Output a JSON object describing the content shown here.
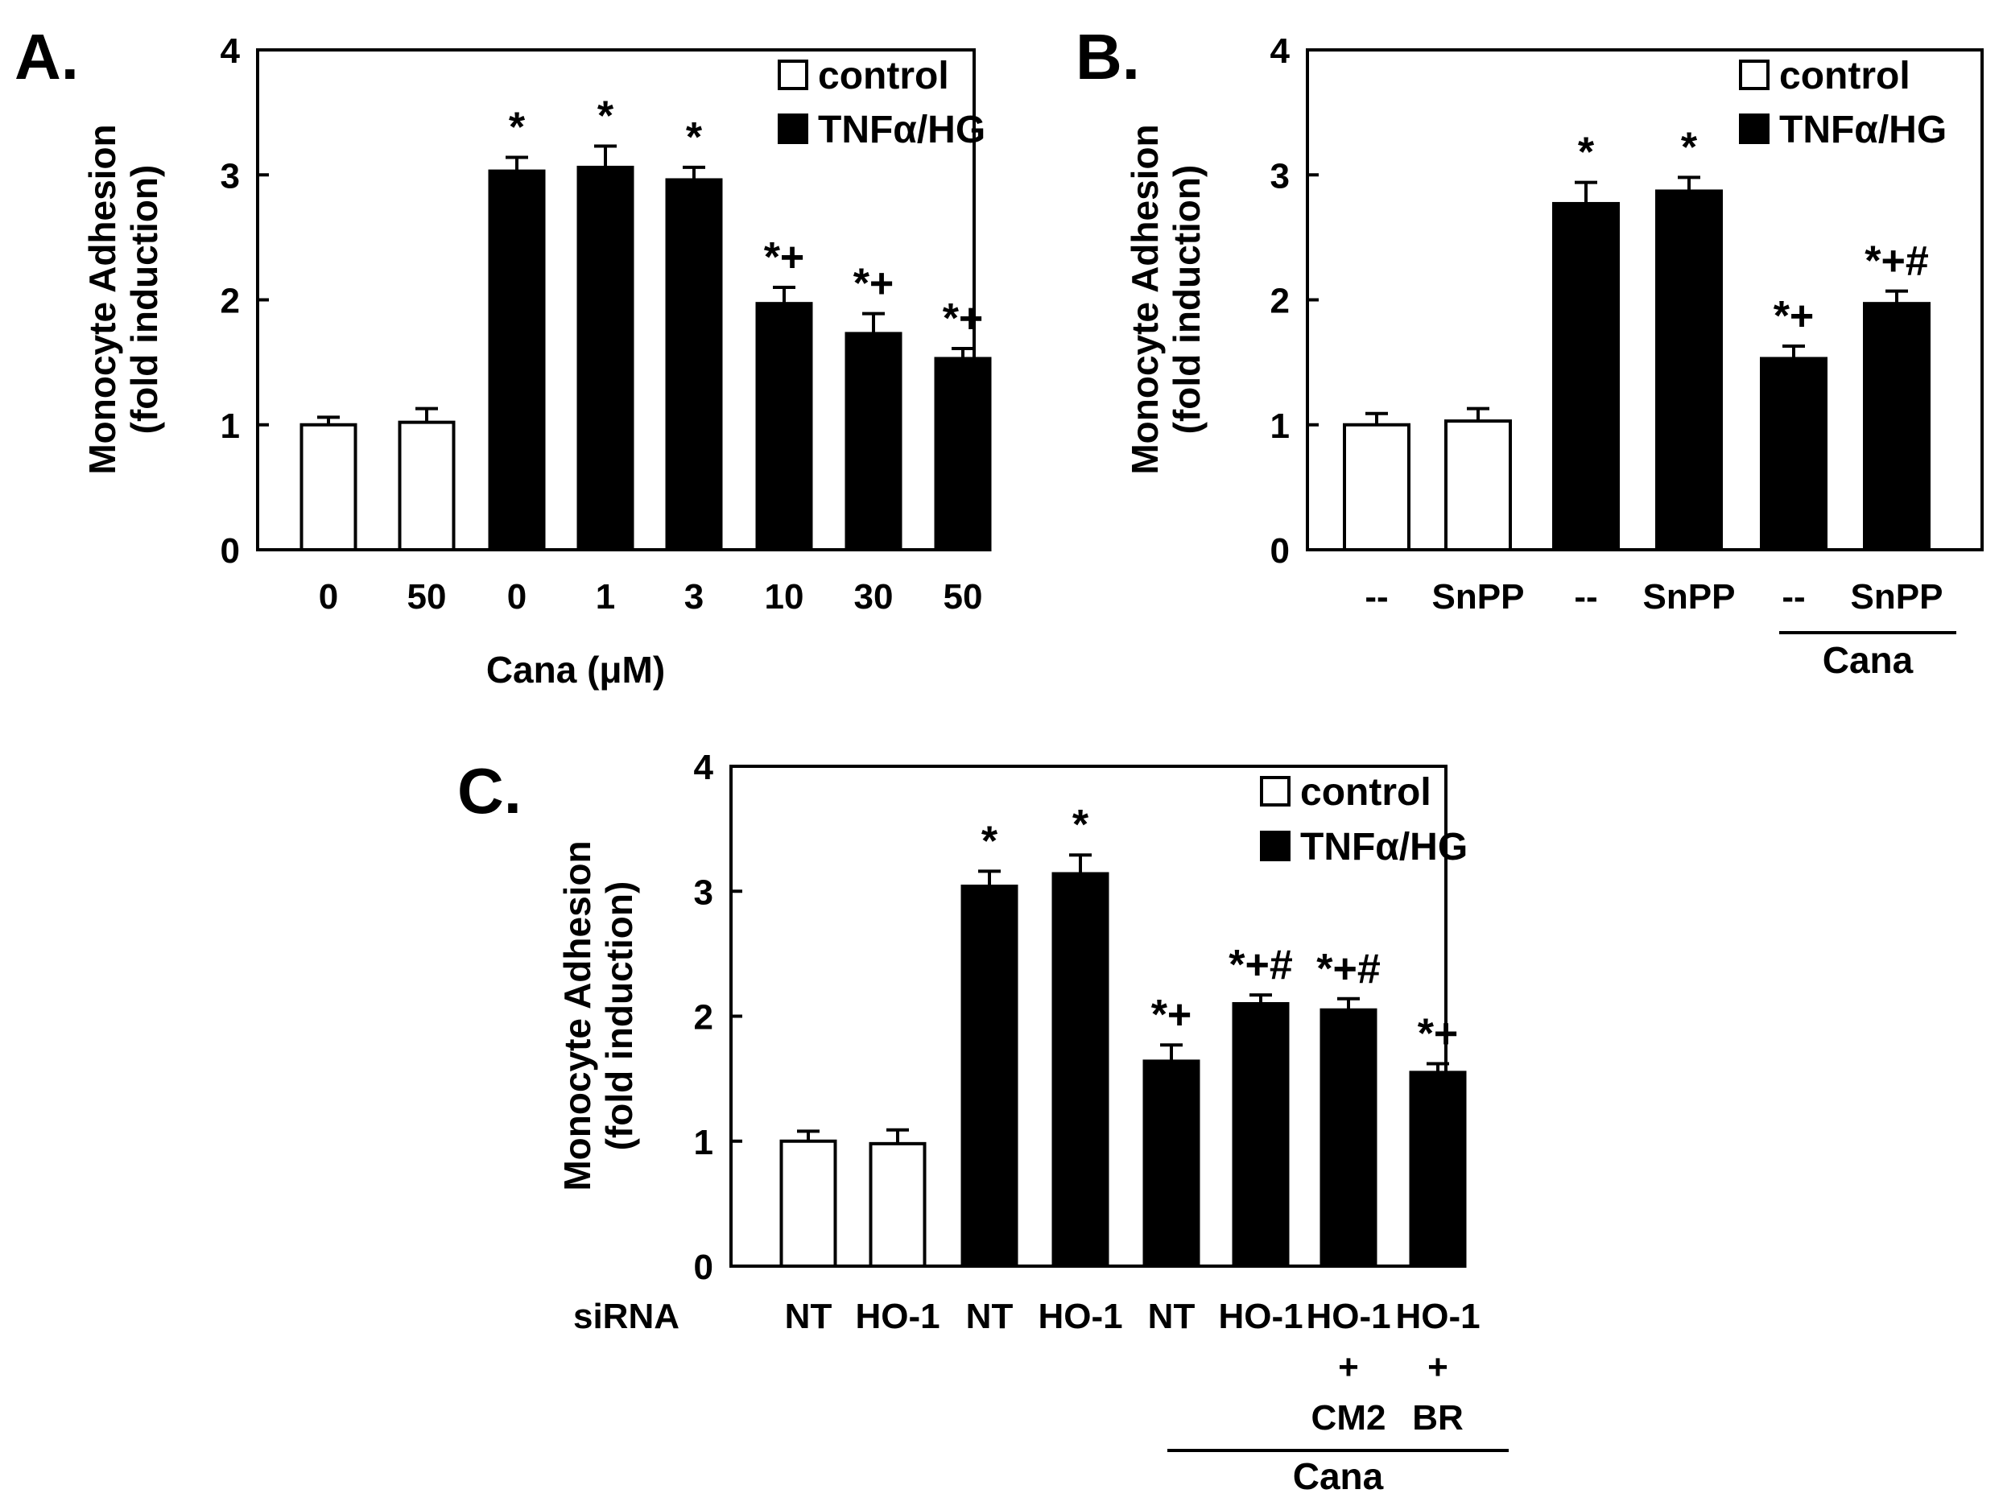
{
  "chart_data": [
    {
      "id": "A",
      "type": "bar",
      "panel_label": "A.",
      "ylabel": [
        "Monocyte Adhesion",
        "(fold induction)"
      ],
      "ylim": [
        0,
        4
      ],
      "yticks": [
        "0",
        "1",
        "2",
        "3",
        "4"
      ],
      "legend": [
        {
          "label": "control",
          "fill": "#ffffff"
        },
        {
          "label": "TNFα/HG",
          "fill": "#000000"
        }
      ],
      "categories": [
        "0",
        "50",
        "0",
        "1",
        "3",
        "10",
        "30",
        "50"
      ],
      "values": [
        1.0,
        1.02,
        3.03,
        3.06,
        2.96,
        1.97,
        1.73,
        1.53
      ],
      "errors": [
        0.06,
        0.11,
        0.11,
        0.17,
        0.1,
        0.13,
        0.16,
        0.08
      ],
      "groups": [
        "control",
        "control",
        "TNFα/HG",
        "TNFα/HG",
        "TNFα/HG",
        "TNFα/HG",
        "TNFα/HG",
        "TNFα/HG"
      ],
      "significance": [
        "",
        "",
        "*",
        "*",
        "*",
        "*+",
        "*+",
        "*+"
      ],
      "xlabel": "Cana (μM)"
    },
    {
      "id": "B",
      "type": "bar",
      "panel_label": "B.",
      "ylabel": [
        "Monocyte Adhesion",
        "(fold induction)"
      ],
      "ylim": [
        0,
        4
      ],
      "yticks": [
        "0",
        "1",
        "2",
        "3",
        "4"
      ],
      "legend": [
        {
          "label": "control",
          "fill": "#ffffff"
        },
        {
          "label": "TNFα/HG",
          "fill": "#000000"
        }
      ],
      "categories": [
        "--",
        "SnPP",
        "--",
        "SnPP",
        "--",
        "SnPP"
      ],
      "values": [
        1.0,
        1.03,
        2.77,
        2.87,
        1.53,
        1.97
      ],
      "errors": [
        0.09,
        0.1,
        0.17,
        0.11,
        0.1,
        0.1
      ],
      "groups": [
        "control",
        "control",
        "TNFα/HG",
        "TNFα/HG",
        "TNFα/HG",
        "TNFα/HG"
      ],
      "significance": [
        "",
        "",
        "*",
        "*",
        "*+",
        "*+#"
      ],
      "bracket_label": "Cana"
    },
    {
      "id": "C",
      "type": "bar",
      "panel_label": "C.",
      "ylabel": [
        "Monocyte Adhesion",
        "(fold induction)"
      ],
      "ylim": [
        0,
        4
      ],
      "yticks": [
        "0",
        "1",
        "2",
        "3",
        "4"
      ],
      "legend": [
        {
          "label": "control",
          "fill": "#ffffff"
        },
        {
          "label": "TNFα/HG",
          "fill": "#000000"
        }
      ],
      "row_label": "siRNA",
      "categories": [
        [
          "NT"
        ],
        [
          "HO-1"
        ],
        [
          "NT"
        ],
        [
          "HO-1"
        ],
        [
          "NT"
        ],
        [
          "HO-1"
        ],
        [
          "HO-1",
          "+",
          "CM2"
        ],
        [
          "HO-1",
          "+",
          "BR"
        ]
      ],
      "values": [
        1.0,
        0.98,
        3.04,
        3.14,
        1.64,
        2.1,
        2.05,
        1.55
      ],
      "errors": [
        0.08,
        0.11,
        0.12,
        0.15,
        0.13,
        0.07,
        0.09,
        0.07
      ],
      "groups": [
        "control",
        "control",
        "TNFα/HG",
        "TNFα/HG",
        "TNFα/HG",
        "TNFα/HG",
        "TNFα/HG",
        "TNFα/HG"
      ],
      "significance": [
        "",
        "",
        "*",
        "*",
        "*+",
        "*+#",
        "*+#",
        "*+"
      ],
      "bracket_label": "Cana"
    }
  ]
}
